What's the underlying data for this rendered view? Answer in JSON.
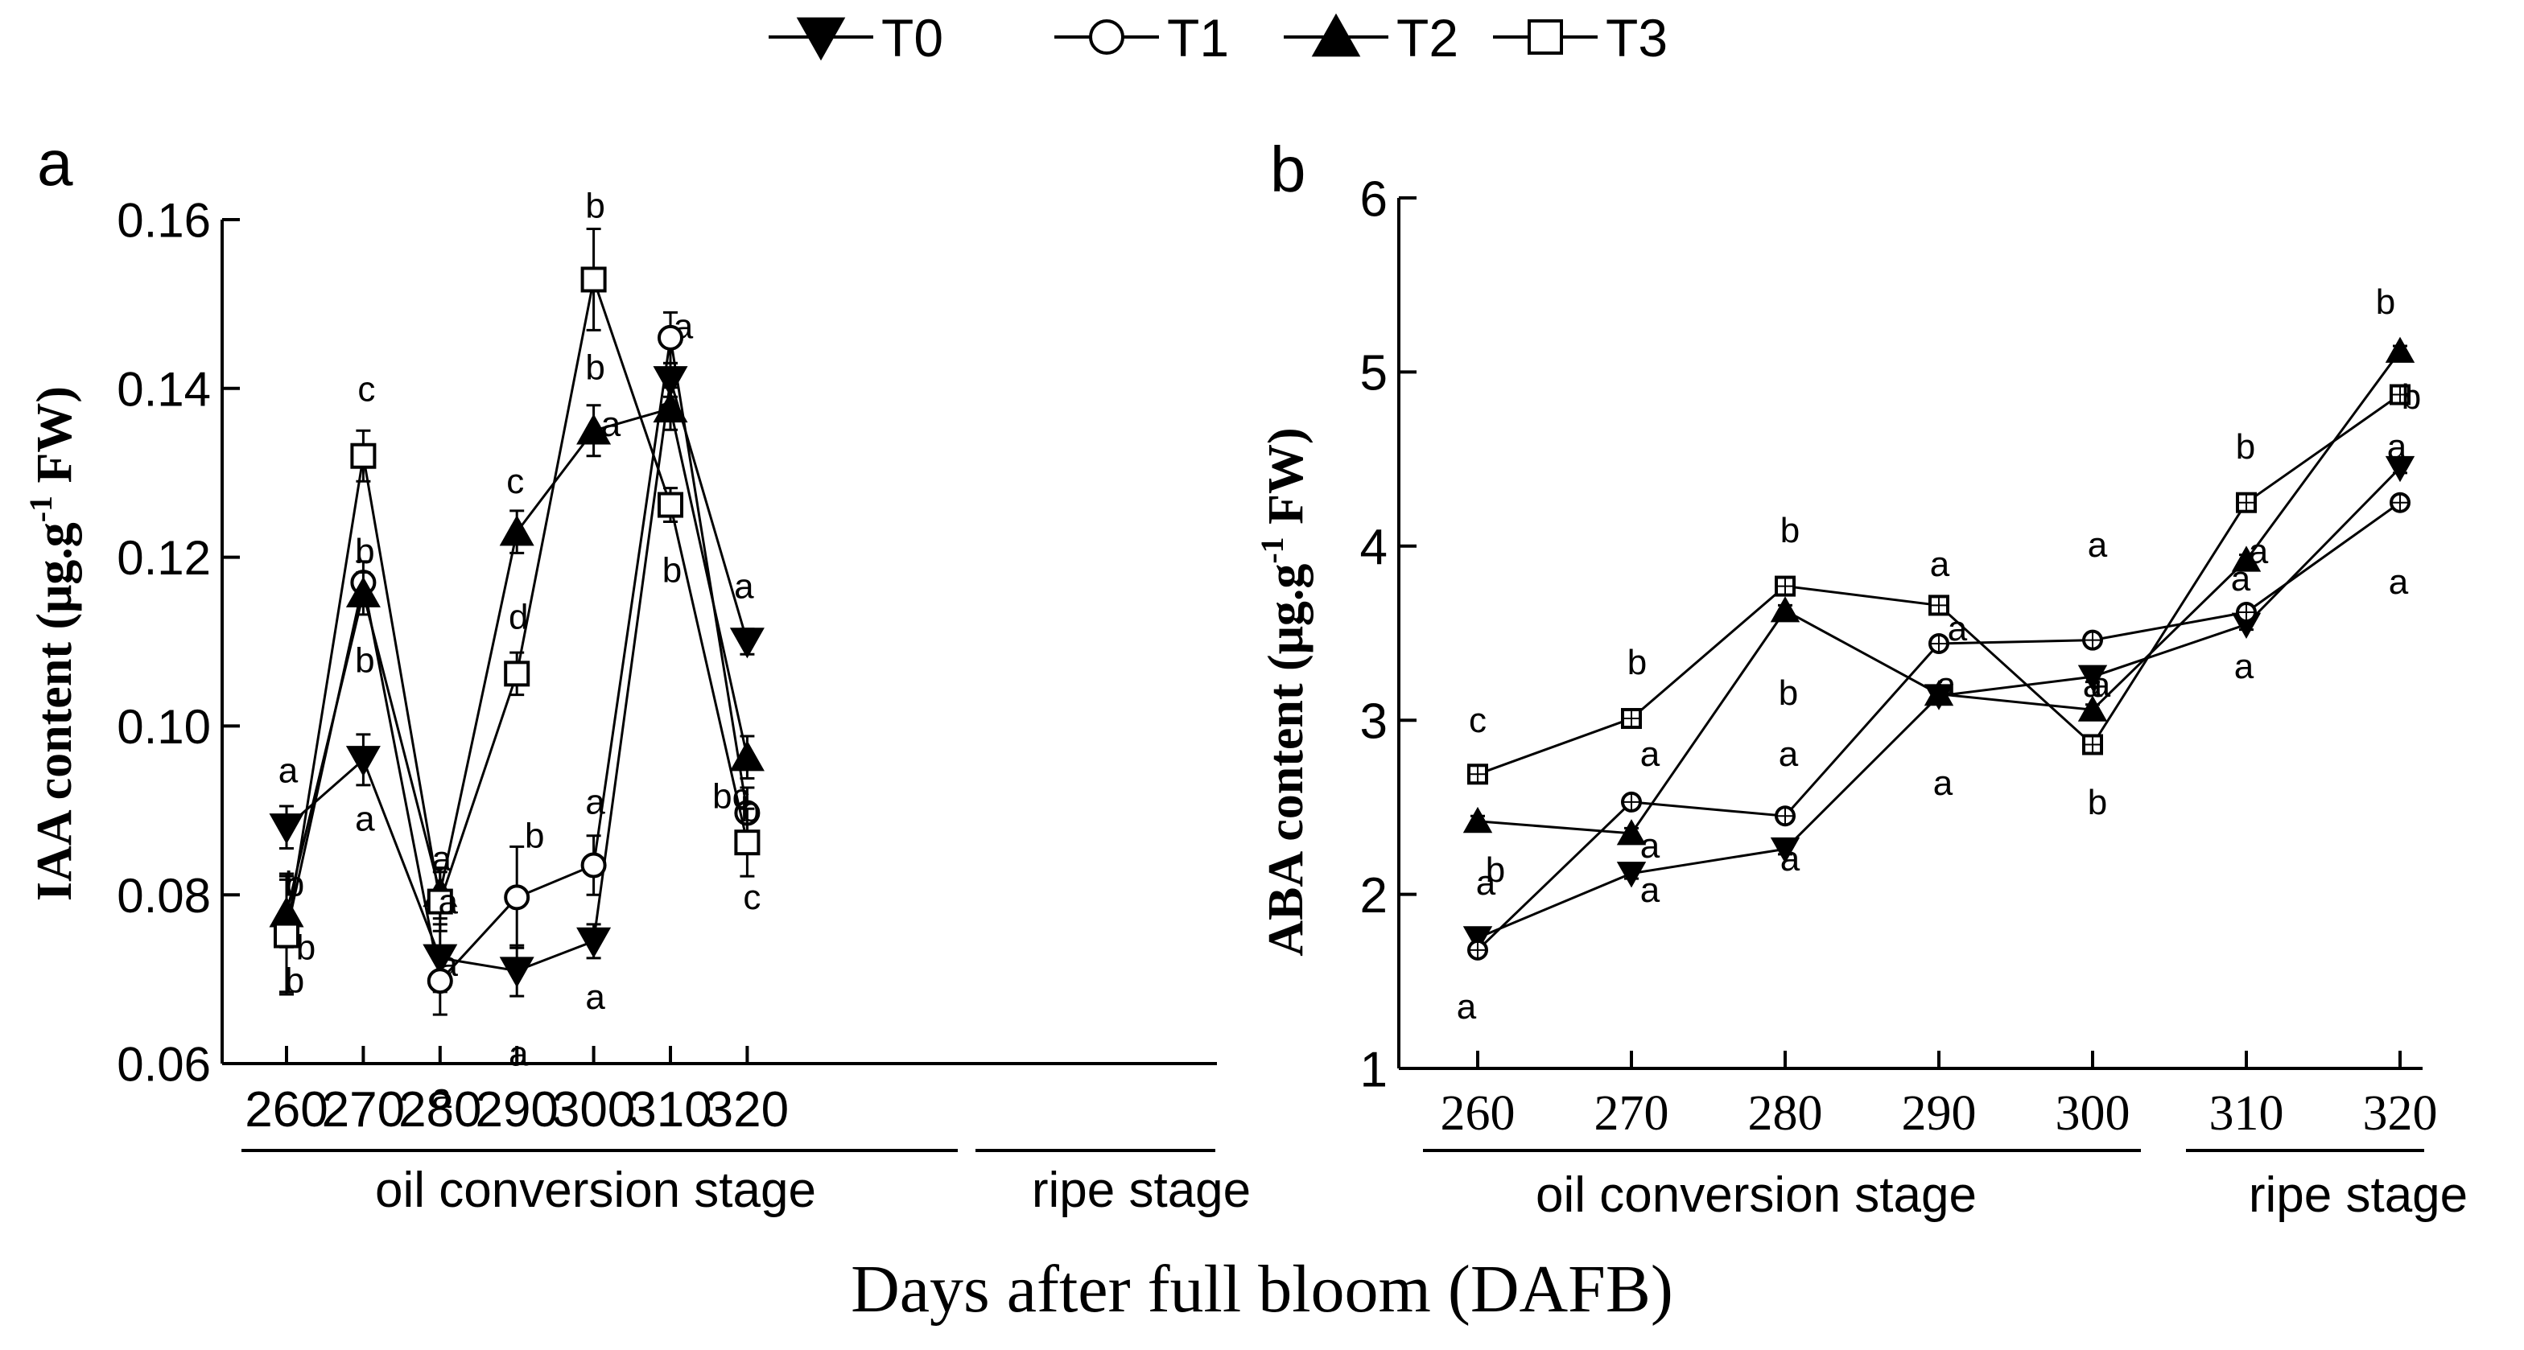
{
  "figure": {
    "xlabel": "Days after full bloom (DAFB)",
    "legend": [
      {
        "name": "T0",
        "marker": "triangle-down",
        "fill": "#000000"
      },
      {
        "name": "T1",
        "marker": "circle",
        "fill": "#ffffff"
      },
      {
        "name": "T2",
        "marker": "triangle-up",
        "fill": "#000000"
      },
      {
        "name": "T3",
        "marker": "square",
        "fill": "#ffffff"
      }
    ]
  },
  "chart_data": [
    {
      "type": "line",
      "panel_label": "a",
      "title": "",
      "ylabel_main": "IAA content (μg.g",
      "ylabel_sup": "-1",
      "ylabel_tail": " FW)",
      "xlabel": "Days after full bloom (DAFB)",
      "ylim": [
        0.06,
        0.16
      ],
      "yticks": [
        0.06,
        0.08,
        0.1,
        0.12,
        0.14,
        0.16
      ],
      "ytick_labels": [
        "0.06",
        "0.08",
        "0.10",
        "0.12",
        "0.14",
        "0.16"
      ],
      "x": [
        260,
        270,
        280,
        290,
        300,
        310,
        320
      ],
      "xtick_labels": [
        "260",
        "270",
        "280",
        "290",
        "300",
        "310",
        "320"
      ],
      "stages": [
        {
          "label": "oil conversion stage",
          "from": 260,
          "to": 300
        },
        {
          "label": "ripe stage",
          "from": 310,
          "to": 320
        }
      ],
      "series": [
        {
          "name": "T0",
          "values": [
            0.088,
            0.096,
            0.0725,
            0.071,
            0.0745,
            0.141,
            0.11
          ],
          "errors": [
            0.0025,
            0.003,
            0.004,
            0.003,
            0.002,
            0.002,
            0.0015
          ],
          "letters": [
            "a",
            "a",
            "a",
            "a",
            "a",
            "a",
            "a"
          ]
        },
        {
          "name": "T1",
          "values": [
            0.0755,
            0.117,
            0.0698,
            0.0797,
            0.0835,
            0.146,
            0.0897
          ],
          "errors": [
            0.007,
            0.0025,
            0.004,
            0.006,
            0.0035,
            0.003,
            0.003
          ],
          "letters": [
            "b",
            "b",
            "a",
            "b",
            "a",
            "a",
            "bc"
          ]
        },
        {
          "name": "T2",
          "values": [
            0.0778,
            0.1157,
            0.0802,
            0.123,
            0.135,
            0.1376,
            0.0963
          ],
          "errors": [
            0.004,
            0.0025,
            0.003,
            0.0025,
            0.003,
            0.0025,
            0.0025
          ],
          "letters": [
            "b",
            "b",
            "a",
            "c",
            "b",
            "a",
            "b"
          ]
        },
        {
          "name": "T3",
          "values": [
            0.0752,
            0.132,
            0.0792,
            0.1062,
            0.1529,
            0.1262,
            0.0862
          ],
          "errors": [
            0.007,
            0.003,
            0.0035,
            0.0025,
            0.006,
            0.002,
            0.004
          ],
          "letters": [
            "b",
            "c",
            "a",
            "d",
            "b",
            "b",
            "c"
          ]
        }
      ]
    },
    {
      "type": "line",
      "panel_label": "b",
      "title": "",
      "ylabel_main": "ABA content (μg.g",
      "ylabel_sup": "-1",
      "ylabel_tail": " FW)",
      "xlabel": "Days after full bloom (DAFB)",
      "ylim": [
        1,
        6
      ],
      "yticks": [
        1,
        2,
        3,
        4,
        5,
        6
      ],
      "ytick_labels": [
        "1",
        "2",
        "3",
        "4",
        "5",
        "6"
      ],
      "x": [
        260,
        270,
        280,
        290,
        300,
        310,
        320
      ],
      "xtick_labels": [
        "260",
        "270",
        "280",
        "290",
        "300",
        "310",
        "320"
      ],
      "stages": [
        {
          "label": "oil conversion stage",
          "from": 260,
          "to": 300
        },
        {
          "label": "ripe stage",
          "from": 310,
          "to": 320
        }
      ],
      "series": [
        {
          "name": "T0",
          "values": [
            1.75,
            2.12,
            2.26,
            3.14,
            3.25,
            3.55,
            4.45
          ],
          "errors": [
            0.03,
            0.03,
            0.03,
            0.03,
            0.03,
            0.03,
            0.03
          ],
          "letters": [
            "a",
            "a",
            "a",
            "a",
            "a",
            "a",
            "a"
          ]
        },
        {
          "name": "T1",
          "values": [
            1.68,
            2.53,
            2.45,
            3.44,
            3.46,
            3.62,
            4.25
          ],
          "errors": [
            0.03,
            0.03,
            0.03,
            0.03,
            0.03,
            0.03,
            0.03
          ],
          "letters": [
            "a",
            "a",
            "a",
            "a",
            "a",
            "a",
            "a"
          ]
        },
        {
          "name": "T2",
          "values": [
            2.42,
            2.35,
            3.63,
            3.15,
            3.06,
            3.92,
            5.12
          ],
          "errors": [
            0.03,
            0.03,
            0.03,
            0.03,
            0.03,
            0.03,
            0.03
          ],
          "letters": [
            "b",
            "a",
            "b",
            "a",
            "b",
            "a",
            "b"
          ]
        },
        {
          "name": "T3",
          "values": [
            2.69,
            3.01,
            3.77,
            3.66,
            2.86,
            4.25,
            4.87
          ],
          "errors": [
            0.03,
            0.03,
            0.03,
            0.03,
            0.03,
            0.03,
            0.03
          ],
          "letters": [
            "c",
            "b",
            "b",
            "a",
            "a",
            "b",
            "b"
          ]
        }
      ]
    }
  ]
}
